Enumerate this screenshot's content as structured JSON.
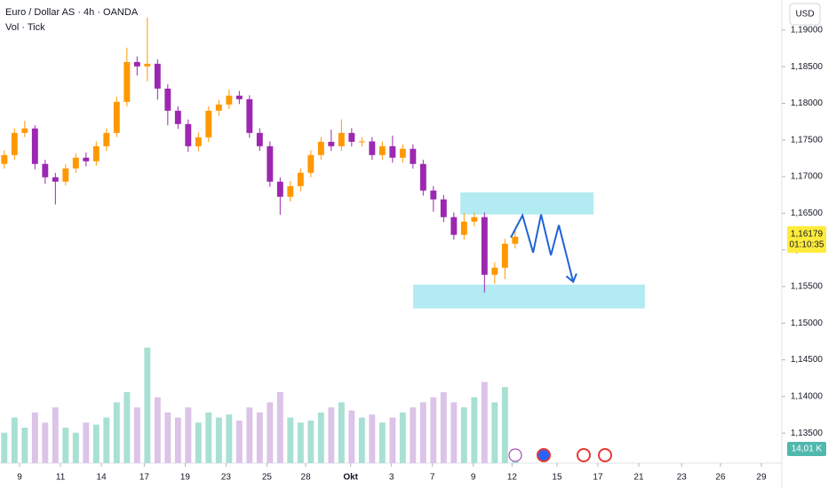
{
  "chart_data": {
    "type": "candlestick",
    "title": "Euro / Dollar AS · 4h · OANDA",
    "subtitle": "Vol · Tick",
    "currency": "USD",
    "up_color": "#ff9800",
    "down_color": "#9c27b0",
    "volume_up_color": "#a8e0d4",
    "volume_down_color": "#dcc3e8",
    "x": [
      -0.75,
      -0.25,
      0.25,
      0.75,
      1.25,
      1.75,
      2.25,
      2.75,
      3.25,
      3.75,
      4.25,
      4.75,
      5.25,
      5.75,
      6.25,
      6.75,
      7.25,
      7.75,
      8.25,
      8.75,
      9.25,
      9.75,
      10.25,
      10.75,
      11.25,
      11.75,
      12.25,
      12.75,
      13.25,
      13.75,
      14.25,
      14.75,
      15.25,
      15.75,
      16.25,
      16.75,
      17.25,
      17.75,
      18.25,
      18.75,
      19.25,
      19.75,
      20.25,
      20.75,
      21.25,
      21.75,
      22.25,
      22.75,
      23.25,
      23.75,
      24.25
    ],
    "open": [
      1.17173,
      1.17294,
      1.17596,
      1.17657,
      1.17173,
      1.16991,
      1.16931,
      1.17112,
      1.17258,
      1.17209,
      1.17415,
      1.17596,
      1.1802,
      1.18564,
      1.18504,
      1.1854,
      1.18201,
      1.17899,
      1.17717,
      1.17415,
      1.17536,
      1.17899,
      1.17984,
      1.18105,
      1.18056,
      1.17596,
      1.17415,
      1.16931,
      1.16725,
      1.1687,
      1.17052,
      1.17294,
      1.17475,
      1.17415,
      1.17596,
      1.17475,
      1.1748,
      1.17294,
      1.17415,
      1.17258,
      1.17379,
      1.17173,
      1.1681,
      1.16689,
      1.16447,
      1.16205,
      1.16386,
      1.16447,
      1.1566,
      1.15757,
      1.16084
    ],
    "high": [
      1.1736,
      1.1766,
      1.1776,
      1.177,
      1.1723,
      1.1705,
      1.1717,
      1.1732,
      1.1733,
      1.1748,
      1.1766,
      1.1809,
      1.1876,
      1.1864,
      1.1917,
      1.186,
      1.1826,
      1.1796,
      1.1778,
      1.176,
      1.1796,
      1.1805,
      1.1819,
      1.1817,
      1.1811,
      1.1766,
      1.1748,
      1.1699,
      1.1694,
      1.1711,
      1.1736,
      1.1754,
      1.1764,
      1.1778,
      1.1766,
      1.1754,
      1.1754,
      1.1748,
      1.1756,
      1.1744,
      1.1744,
      1.1723,
      1.1687,
      1.1675,
      1.1651,
      1.165,
      1.1651,
      1.1651,
      1.1583,
      1.1615,
      1.1626
    ],
    "low": [
      1.1711,
      1.1723,
      1.1754,
      1.171,
      1.169,
      1.1662,
      1.1688,
      1.1705,
      1.1714,
      1.1715,
      1.1735,
      1.1754,
      1.1796,
      1.1838,
      1.183,
      1.1805,
      1.177,
      1.1765,
      1.1734,
      1.1735,
      1.1747,
      1.1783,
      1.1792,
      1.1799,
      1.1753,
      1.1735,
      1.1686,
      1.1648,
      1.1666,
      1.168,
      1.1699,
      1.1723,
      1.1735,
      1.1735,
      1.1741,
      1.1741,
      1.1723,
      1.1723,
      1.1719,
      1.1719,
      1.1711,
      1.1674,
      1.1652,
      1.1638,
      1.1614,
      1.1614,
      1.1632,
      1.1542,
      1.1554,
      1.156,
      1.1602
    ],
    "close": [
      1.17294,
      1.17596,
      1.17657,
      1.17173,
      1.16991,
      1.16931,
      1.17112,
      1.17258,
      1.17209,
      1.17415,
      1.17596,
      1.1802,
      1.18564,
      1.18504,
      1.1854,
      1.18201,
      1.17899,
      1.17717,
      1.17415,
      1.17536,
      1.17899,
      1.17984,
      1.18105,
      1.18056,
      1.17596,
      1.17415,
      1.16931,
      1.16725,
      1.1687,
      1.17052,
      1.17294,
      1.17475,
      1.17415,
      1.17596,
      1.17475,
      1.1748,
      1.17294,
      1.17415,
      1.17258,
      1.17379,
      1.17173,
      1.1681,
      1.16689,
      1.16447,
      1.16205,
      1.16386,
      1.16447,
      1.1566,
      1.15757,
      1.16084,
      1.16179
    ],
    "volume": [
      30,
      45,
      35,
      50,
      40,
      55,
      35,
      30,
      40,
      38,
      45,
      60,
      70,
      55,
      114,
      65,
      50,
      45,
      55,
      40,
      50,
      45,
      48,
      42,
      55,
      50,
      60,
      70,
      45,
      40,
      42,
      50,
      55,
      60,
      52,
      45,
      48,
      40,
      45,
      50,
      55,
      60,
      65,
      70,
      60,
      55,
      65,
      80,
      60,
      75,
      14.01
    ],
    "last_volume_label": "14,01 K",
    "volume_lim": [
      0,
      140
    ],
    "last_price": {
      "value": 1.16179,
      "label": "1,16179"
    },
    "countdown": "01:10:35",
    "price_label_color": "#ffeb3b",
    "zones": [
      {
        "x": [
          21.57,
          28.09
        ],
        "y": [
          1.16483,
          1.16785
        ]
      },
      {
        "x": [
          19.26,
          30.6
        ],
        "y": [
          1.15201,
          1.15527
        ]
      }
    ],
    "zone_color": "#b2ebf2",
    "projection": {
      "x": [
        24.04,
        24.61,
        25.13,
        25.52,
        26.0,
        26.39,
        27.09
      ],
      "y": [
        1.16169,
        1.16471,
        1.15963,
        1.16483,
        1.15927,
        1.16338,
        1.15564
      ],
      "color": "#1e63d6"
    },
    "xlim": [
      -0.96,
      37.3
    ],
    "ylim": [
      1.1309,
      1.1941
    ],
    "xticks": [
      {
        "value": 0,
        "label": "9"
      },
      {
        "value": 2,
        "label": "11"
      },
      {
        "value": 4,
        "label": "14"
      },
      {
        "value": 6.1,
        "label": "17"
      },
      {
        "value": 8.1,
        "label": "19"
      },
      {
        "value": 10.1,
        "label": "23"
      },
      {
        "value": 12.1,
        "label": "25"
      },
      {
        "value": 14,
        "label": "28"
      },
      {
        "value": 16.2,
        "label": "Okt"
      },
      {
        "value": 18.2,
        "label": "3"
      },
      {
        "value": 20.2,
        "label": "7"
      },
      {
        "value": 22.2,
        "label": "9"
      },
      {
        "value": 24.1,
        "label": "12"
      },
      {
        "value": 26.3,
        "label": "15"
      },
      {
        "value": 28.3,
        "label": "17"
      },
      {
        "value": 30.3,
        "label": "21"
      },
      {
        "value": 32.4,
        "label": "23"
      },
      {
        "value": 34.3,
        "label": "26"
      },
      {
        "value": 36.3,
        "label": "29"
      }
    ],
    "yticks": [
      {
        "value": 1.19,
        "label": "1,19000"
      },
      {
        "value": 1.185,
        "label": "1,18500"
      },
      {
        "value": 1.18,
        "label": "1,18000"
      },
      {
        "value": 1.175,
        "label": "1,17500"
      },
      {
        "value": 1.17,
        "label": "1,17000"
      },
      {
        "value": 1.165,
        "label": "1,16500"
      },
      {
        "value": 1.16,
        "label": "1,16000"
      },
      {
        "value": 1.155,
        "label": "1,15500"
      },
      {
        "value": 1.15,
        "label": "1,15000"
      },
      {
        "value": 1.145,
        "label": "1,14500"
      },
      {
        "value": 1.14,
        "label": "1,14000"
      },
      {
        "value": 1.135,
        "label": "1,13500"
      }
    ]
  }
}
